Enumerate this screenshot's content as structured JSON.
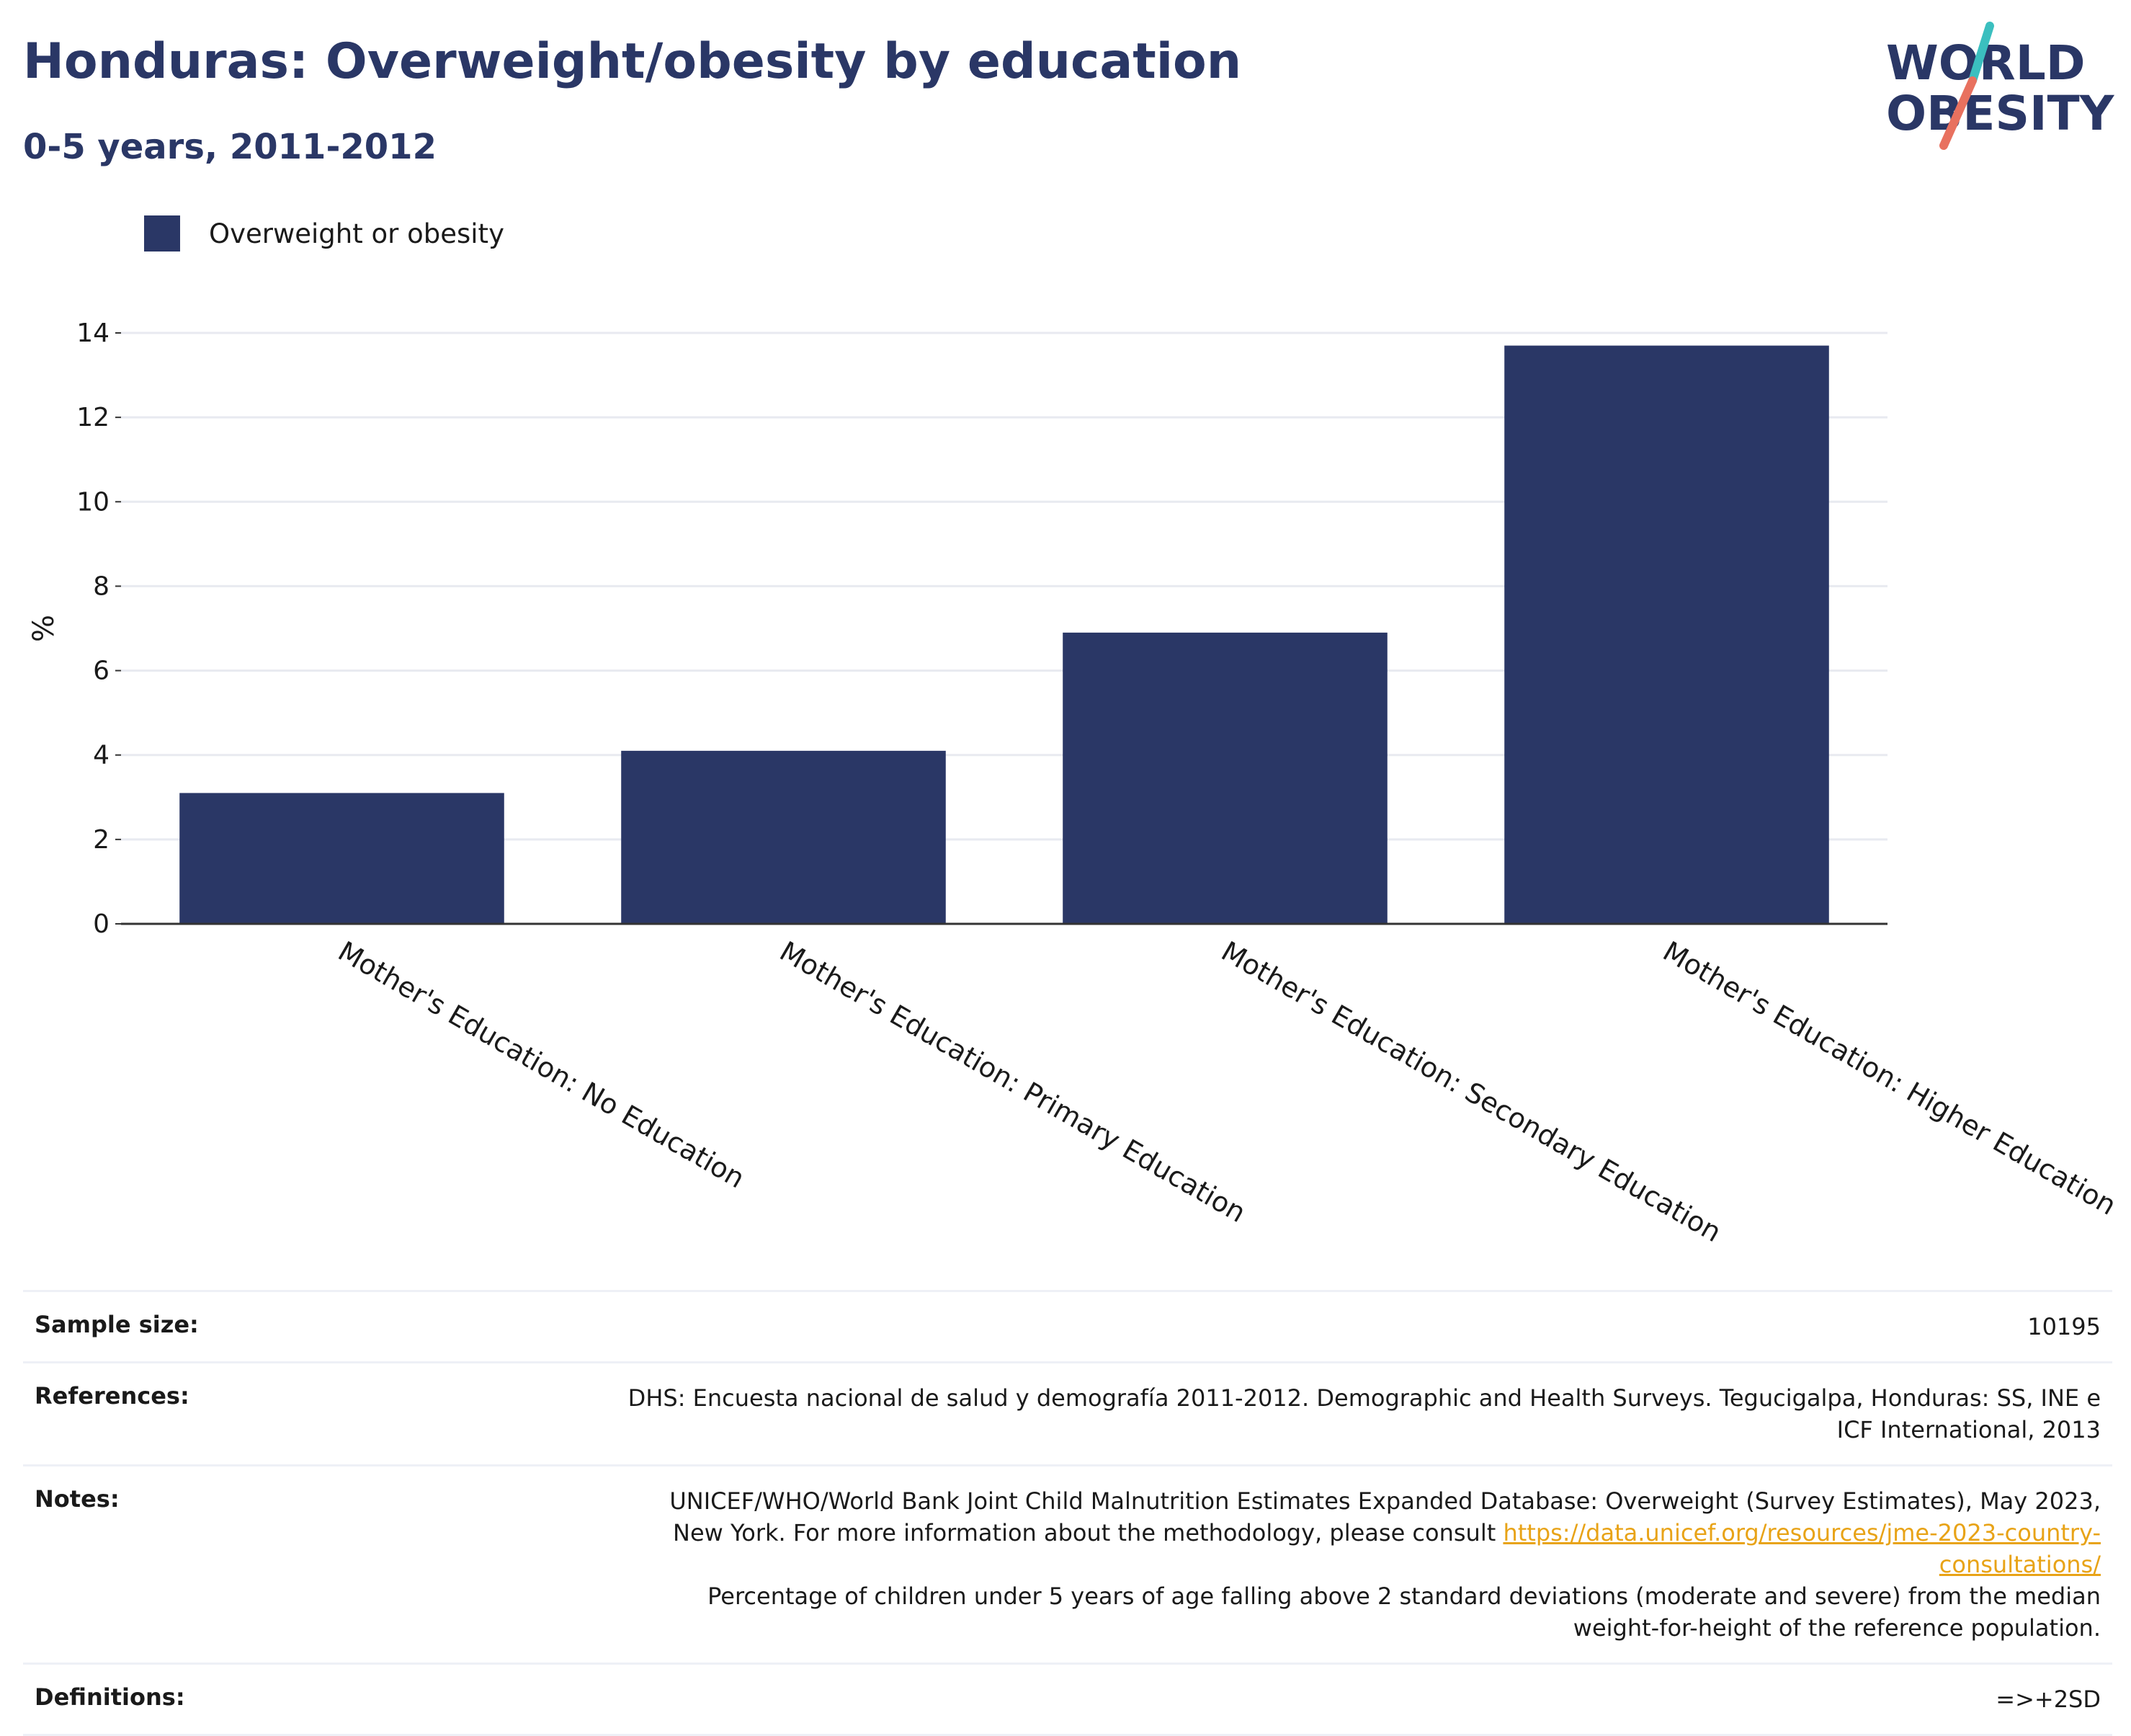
{
  "header": {
    "title": "Honduras: Overweight/obesity by education",
    "subtitle": "0-5 years, 2011-2012"
  },
  "logo": {
    "line1": "WORLD",
    "line2": "OBESITY",
    "colors": {
      "text": "#2a3766",
      "slash_top": "#3bbfbf",
      "slash_bottom": "#e8715f"
    }
  },
  "colors": {
    "bar": "#2a3766",
    "grid": "#e8eaf0",
    "axis": "#333333",
    "link": "#e8a317"
  },
  "chart_data": {
    "type": "bar",
    "categories": [
      "Mother's Education: No Education",
      "Mother's Education: Primary Education",
      "Mother's Education: Secondary Education",
      "Mother's Education: Higher Education"
    ],
    "series": [
      {
        "name": "Overweight or obesity",
        "values": [
          3.1,
          4.1,
          6.9,
          13.7
        ]
      }
    ],
    "ylabel": "%",
    "ylim": [
      0,
      14
    ],
    "yticks": [
      0,
      2,
      4,
      6,
      8,
      10,
      12,
      14
    ],
    "grid": true,
    "legend": "top-left"
  },
  "info": {
    "sample_size_label": "Sample size:",
    "sample_size_value": "10195",
    "references_label": "References:",
    "references_value": "DHS: Encuesta nacional de salud y demografía 2011-2012. Demographic and Health Surveys. Tegucigalpa, Honduras: SS, INE e ICF International, 2013",
    "notes_label": "Notes:",
    "notes_text_1": "UNICEF/WHO/World Bank Joint Child Malnutrition Estimates Expanded Database: Overweight (Survey Estimates), May 2023, New York. For more information about the methodology, please consult ",
    "notes_link": "https://data.unicef.org/resources/jme-2023-country-consultations/",
    "notes_text_2": "Percentage of children under 5 years of age falling above 2 standard deviations (moderate and severe) from the median weight-for-height of the reference population.",
    "definitions_label": "Definitions:",
    "definitions_value": "=>+2SD"
  }
}
